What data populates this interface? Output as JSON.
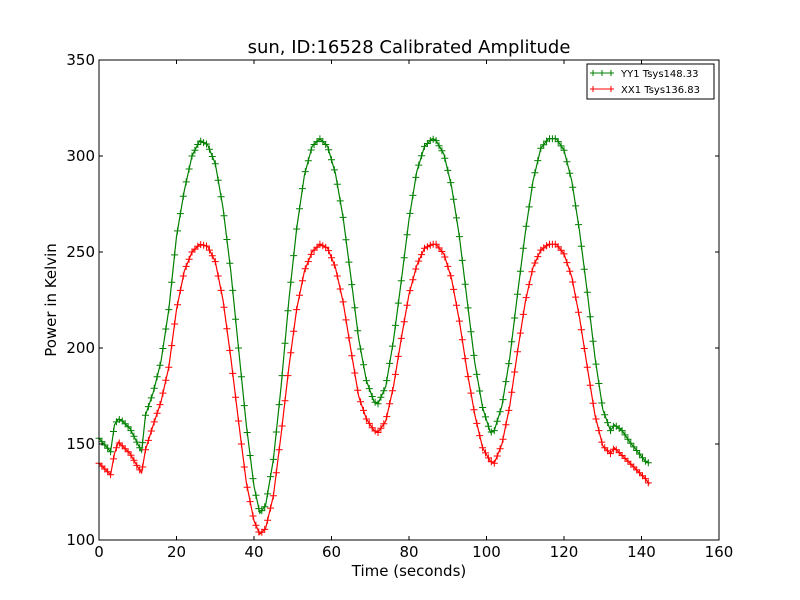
{
  "chart_data": {
    "type": "line",
    "title": "sun, ID:16528 Calibrated Amplitude",
    "xlabel": "Time (seconds)",
    "ylabel": "Power in Kelvin",
    "xlim": [
      0,
      160
    ],
    "ylim": [
      100,
      350
    ],
    "xticks": [
      "0",
      "20",
      "40",
      "60",
      "80",
      "100",
      "120",
      "140",
      "160"
    ],
    "yticks": [
      "100",
      "150",
      "200",
      "250",
      "300",
      "350"
    ],
    "grid": false,
    "legend_position": "top-right",
    "marker": "+",
    "series": [
      {
        "name": "YY1 Tsys148.33",
        "color": "#008000",
        "x": [
          0,
          3,
          4,
          5,
          6,
          8,
          10,
          11,
          12,
          14,
          16,
          18,
          20,
          22,
          24,
          26,
          28,
          30,
          32,
          34,
          36,
          38,
          40,
          41.5,
          43,
          45,
          47,
          49,
          51,
          53,
          55,
          57,
          59,
          61,
          63,
          65,
          67,
          69,
          71,
          72,
          74,
          76,
          78,
          80,
          82,
          84,
          86,
          87,
          89,
          91,
          93,
          95,
          97,
          99,
          101,
          102,
          104,
          106,
          108,
          110,
          112,
          114,
          116,
          118,
          120,
          122,
          124,
          126,
          128,
          130,
          132,
          133,
          135,
          137,
          139,
          141,
          142
        ],
        "y": [
          153,
          146,
          160,
          163,
          162,
          158,
          150,
          146,
          165,
          177,
          193,
          220,
          258,
          282,
          300,
          308,
          306,
          296,
          273,
          240,
          200,
          160,
          128,
          114,
          118,
          142,
          180,
          225,
          262,
          290,
          305,
          309,
          305,
          291,
          268,
          237,
          205,
          183,
          172,
          171,
          180,
          204,
          235,
          267,
          292,
          305,
          309,
          308,
          301,
          284,
          258,
          225,
          192,
          169,
          156,
          157,
          170,
          195,
          228,
          260,
          287,
          304,
          309,
          309,
          303,
          287,
          261,
          229,
          195,
          168,
          157,
          160,
          157,
          151,
          146,
          141,
          140
        ]
      },
      {
        "name": "XX1 Tsys136.83",
        "color": "#ff0000",
        "x": [
          0,
          3,
          4,
          5,
          6,
          8,
          10,
          11,
          12,
          14,
          16,
          18,
          20,
          22,
          24,
          26,
          28,
          30,
          32,
          34,
          36,
          38,
          40,
          41.5,
          43,
          45,
          47,
          49,
          51,
          53,
          55,
          57,
          59,
          61,
          63,
          65,
          67,
          69,
          71,
          72,
          74,
          76,
          78,
          80,
          82,
          84,
          86,
          87,
          89,
          91,
          93,
          95,
          97,
          99,
          101,
          102,
          104,
          106,
          108,
          110,
          112,
          114,
          116,
          118,
          120,
          122,
          124,
          126,
          128,
          130,
          132,
          133,
          135,
          137,
          139,
          141,
          142
        ],
        "y": [
          140,
          134,
          145,
          151,
          149,
          145,
          138,
          135,
          147,
          160,
          172,
          190,
          220,
          240,
          250,
          254,
          253,
          245,
          225,
          195,
          162,
          130,
          110,
          103,
          106,
          123,
          155,
          190,
          220,
          240,
          250,
          254,
          252,
          242,
          224,
          199,
          175,
          163,
          157,
          156,
          162,
          180,
          205,
          228,
          243,
          252,
          254,
          254,
          249,
          236,
          214,
          188,
          165,
          148,
          141,
          140,
          150,
          170,
          198,
          224,
          242,
          251,
          254,
          254,
          249,
          237,
          216,
          190,
          165,
          149,
          145,
          148,
          144,
          140,
          136,
          132,
          129
        ]
      }
    ]
  }
}
